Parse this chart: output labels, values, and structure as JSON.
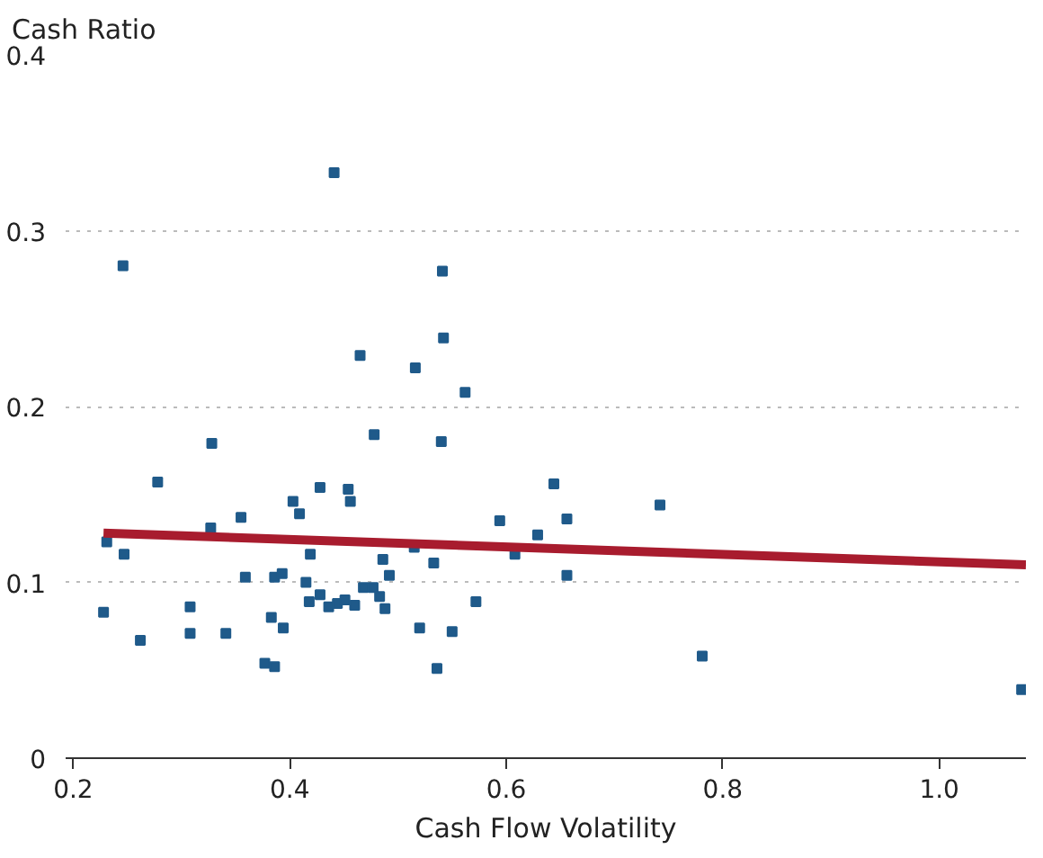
{
  "chart_data": {
    "type": "scatter",
    "xlabel": "Cash Flow Volatility",
    "ylabel": "Cash Ratio",
    "xlim": [
      0.193,
      1.08
    ],
    "ylim": [
      0,
      0.4
    ],
    "xticks": [
      0.2,
      0.4,
      0.6,
      0.8,
      {
        "value": 1,
        "label": "1.0"
      }
    ],
    "yticks": [
      0,
      0.1,
      0.2,
      0.3,
      0.4
    ],
    "grid": "y",
    "series": [
      {
        "marker": "square",
        "color": "#1f5a8a",
        "x": [
          0.441,
          0.246,
          0.465,
          0.516,
          0.328,
          0.478,
          0.541,
          0.542,
          0.562,
          0.54,
          0.278,
          0.231,
          0.247,
          0.327,
          0.355,
          0.403,
          0.409,
          0.428,
          0.454,
          0.456,
          0.419,
          0.486,
          0.515,
          0.492,
          0.359,
          0.386,
          0.393,
          0.415,
          0.228,
          0.308,
          0.428,
          0.418,
          0.436,
          0.444,
          0.451,
          0.46,
          0.468,
          0.477,
          0.483,
          0.488,
          0.383,
          0.262,
          0.308,
          0.341,
          0.394,
          0.377,
          0.386,
          0.52,
          0.644,
          0.594,
          0.656,
          0.629,
          0.742,
          0.533,
          0.608,
          0.656,
          0.572,
          0.55,
          0.536,
          0.781,
          1.076
        ],
        "values": [
          0.333,
          0.28,
          0.229,
          0.222,
          0.179,
          0.184,
          0.277,
          0.239,
          0.208,
          0.18,
          0.157,
          0.123,
          0.116,
          0.131,
          0.137,
          0.146,
          0.139,
          0.154,
          0.153,
          0.146,
          0.116,
          0.113,
          0.12,
          0.104,
          0.103,
          0.103,
          0.105,
          0.1,
          0.083,
          0.086,
          0.093,
          0.089,
          0.086,
          0.088,
          0.09,
          0.087,
          0.097,
          0.097,
          0.092,
          0.085,
          0.08,
          0.067,
          0.071,
          0.071,
          0.074,
          0.054,
          0.052,
          0.074,
          0.156,
          0.135,
          0.136,
          0.127,
          0.144,
          0.111,
          0.116,
          0.104,
          0.089,
          0.072,
          0.051,
          0.058,
          0.039
        ]
      },
      {
        "type": "line",
        "color": "#a81c2e",
        "x": [
          0.228,
          1.08
        ],
        "values": [
          0.128,
          0.11
        ]
      }
    ]
  }
}
